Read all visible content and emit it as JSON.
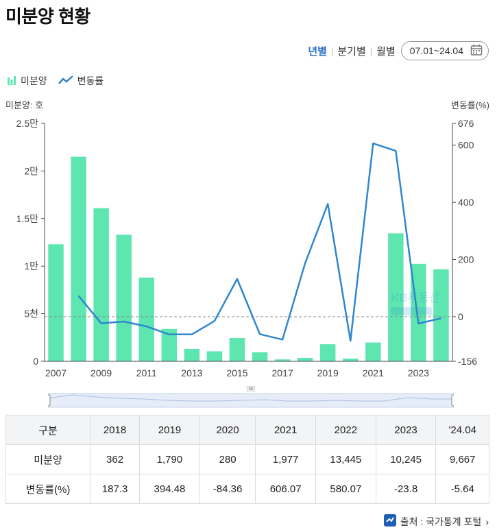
{
  "title": "미분양 현황",
  "periods": [
    {
      "label": "년별",
      "active": true
    },
    {
      "label": "분기별",
      "active": false
    },
    {
      "label": "월별",
      "active": false
    }
  ],
  "date_range": "07.01~24.04",
  "legend": {
    "bar_label": "미분양",
    "line_label": "변동률"
  },
  "colors": {
    "bar": "#5ee6b0",
    "line": "#2f86cf",
    "active": "#2b6fc7"
  },
  "chart_data": {
    "type": "bar",
    "left_axis_title": "미분양: 호",
    "right_axis_title": "변동률(%)",
    "left_ticks": [
      {
        "label": "0",
        "value": 0
      },
      {
        "label": "5천",
        "value": 5000
      },
      {
        "label": "1만",
        "value": 10000
      },
      {
        "label": "1.5만",
        "value": 15000
      },
      {
        "label": "2만",
        "value": 20000
      },
      {
        "label": "2.5만",
        "value": 25000
      }
    ],
    "right_ticks": [
      {
        "label": "-156",
        "value": -156
      },
      {
        "label": "0",
        "value": 0
      },
      {
        "label": "200",
        "value": 200
      },
      {
        "label": "400",
        "value": 400
      },
      {
        "label": "600",
        "value": 600
      },
      {
        "label": "676",
        "value": 676
      }
    ],
    "left_ylim": [
      0,
      25000
    ],
    "right_ylim": [
      -156,
      676
    ],
    "x_tick_labels": [
      "2007",
      "2009",
      "2011",
      "2013",
      "2015",
      "2017",
      "2019",
      "2021",
      "2023"
    ],
    "series": [
      {
        "name": "미분양",
        "type": "bar",
        "x": [
          2007,
          2008,
          2009,
          2010,
          2011,
          2012,
          2013,
          2014,
          2015,
          2016,
          2017,
          2018,
          2019,
          2020,
          2021,
          2022,
          2023,
          2024
        ],
        "values": [
          12300,
          21500,
          16100,
          13300,
          8800,
          3400,
          1300,
          1050,
          2450,
          950,
          200,
          362,
          1790,
          280,
          1977,
          13445,
          10245,
          9667
        ]
      },
      {
        "name": "변동률",
        "type": "line",
        "x": [
          2008,
          2009,
          2010,
          2011,
          2012,
          2013,
          2014,
          2015,
          2016,
          2017,
          2018,
          2019,
          2020,
          2021,
          2022,
          2023,
          2024
        ],
        "values": [
          73,
          -23,
          -17,
          -34,
          -62,
          -62,
          -15,
          132,
          -61,
          -80,
          187.3,
          394.48,
          -84.36,
          606.07,
          580.07,
          -23.8,
          -5.64
        ]
      }
    ],
    "reference_line": {
      "axis": "right",
      "value": 0
    }
  },
  "table": {
    "headers": [
      "구분",
      "2018",
      "2019",
      "2020",
      "2021",
      "2022",
      "2023",
      "'24.04"
    ],
    "rows": [
      [
        "미분양",
        "362",
        "1,790",
        "280",
        "1,977",
        "13,445",
        "10,245",
        "9,667"
      ],
      [
        "변동률(%)",
        "187.3",
        "394.48",
        "-84.36",
        "606.07",
        "580.07",
        "-23.8",
        "-5.64"
      ]
    ]
  },
  "source": "출처 : 국가통계 포털"
}
